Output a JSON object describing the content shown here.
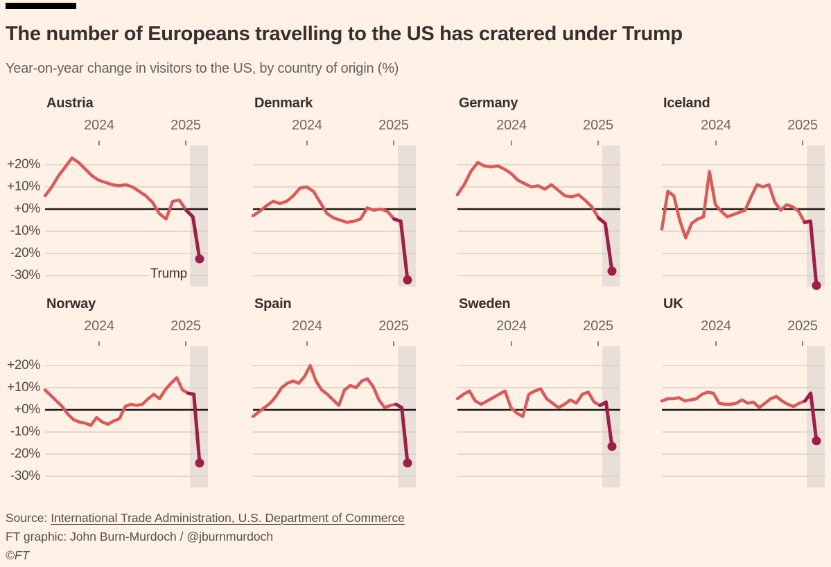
{
  "header": {
    "title": "The number of Europeans travelling to the US has cratered under Trump",
    "subtitle": "Year-on-year change in visitors to the US, by country of origin (%)"
  },
  "chart_data": {
    "type": "line",
    "layout": "small-multiples-2x4",
    "title": "The number of Europeans travelling to the US has cratered under Trump",
    "subtitle": "Year-on-year change in visitors to the US, by country of origin (%)",
    "unit": "%",
    "x_axis": {
      "tick_labels": [
        "2024",
        "2025"
      ]
    },
    "y_axis": {
      "tick_labels": [
        "+20%",
        "+10%",
        "+0%",
        "-10%",
        "-20%",
        "-30%"
      ],
      "tick_values": [
        20,
        10,
        0,
        -10,
        -20,
        -30
      ],
      "range": [
        -33.5,
        27.5
      ],
      "grid": true
    },
    "highlight_band": "Trump period (2025)",
    "panels": [
      {
        "country": "Austria",
        "annotation": "Trump",
        "values": [
          6,
          10,
          15,
          19,
          23,
          21,
          18,
          15,
          13,
          12,
          11,
          10.5,
          11,
          10,
          8,
          6,
          3,
          -2,
          -4.5,
          3.5,
          4,
          -0.5,
          -3.5,
          -22.5
        ]
      },
      {
        "country": "Denmark",
        "values": [
          -3,
          -1,
          1.5,
          3.5,
          2.5,
          3.5,
          6,
          9.5,
          10,
          8,
          3,
          -2,
          -4,
          -5,
          -6,
          -5.5,
          -4.5,
          0.5,
          -0.5,
          0,
          -1,
          -4.5,
          -5.5,
          -32
        ]
      },
      {
        "country": "Germany",
        "values": [
          6.5,
          11,
          17,
          21,
          19.5,
          19,
          19.5,
          18,
          16,
          13,
          11.5,
          10,
          10.5,
          9,
          11,
          8.5,
          6,
          5.5,
          6.5,
          4,
          1,
          -4,
          -6.5,
          -28
        ]
      },
      {
        "country": "Iceland",
        "values": [
          -9,
          8,
          6,
          -5,
          -13,
          -6.5,
          -4.5,
          -3.5,
          17,
          2,
          -1,
          -3.5,
          -2.5,
          -1.5,
          -0.5,
          5.5,
          11,
          10,
          11,
          3,
          -0.5,
          2,
          1,
          -1,
          -6,
          -5.5,
          -34.5
        ]
      },
      {
        "country": "Norway",
        "values": [
          9,
          6.5,
          4,
          1.5,
          -2,
          -4.5,
          -5.5,
          -6,
          -7,
          -3.5,
          -5.5,
          -6.5,
          -5,
          -4,
          1.5,
          2.5,
          2,
          2.5,
          5,
          7,
          5,
          9,
          12,
          14.5,
          9,
          7.5,
          7,
          -24
        ]
      },
      {
        "country": "Spain",
        "values": [
          -3,
          -1,
          1,
          3,
          6,
          10,
          12,
          13,
          12,
          15,
          20,
          13,
          9,
          7,
          4.5,
          2,
          9,
          11,
          10,
          13,
          14,
          10.5,
          4.5,
          1,
          2,
          2.5,
          1,
          -24
        ]
      },
      {
        "country": "Sweden",
        "values": [
          5,
          7,
          8.5,
          4,
          2.5,
          4,
          5.5,
          7,
          8.5,
          1,
          -1.5,
          -3,
          7,
          8.5,
          9.5,
          5,
          3,
          1,
          2.5,
          4.5,
          3,
          7,
          8,
          3.5,
          2,
          3.5,
          -16.5
        ]
      },
      {
        "country": "UK",
        "values": [
          4,
          5,
          5,
          5.5,
          4,
          4.5,
          5,
          7,
          8,
          7.5,
          3,
          2.5,
          2.5,
          3,
          4.5,
          3,
          3.5,
          1,
          3,
          5,
          6,
          4,
          2.5,
          1.5,
          3,
          4,
          7.5,
          -14
        ]
      }
    ]
  },
  "footer": {
    "source_prefix": "Source: ",
    "source_link": "International Trade Administration, U.S. Department of Commerce",
    "credit": "FT graphic: John Burn-Murdoch / @jburnmurdoch",
    "copyright": "©FT"
  },
  "colors": {
    "background": "#fff1e5",
    "line": "#d95a5a",
    "crash": "#9d1e46",
    "grid": "#d6c8be",
    "zero_line": "#1a1817",
    "band": "#e8e0d8",
    "tick": "#66605c",
    "text_dark": "#33302e",
    "text_muted": "#66605c",
    "topper_bar": "#000000"
  }
}
